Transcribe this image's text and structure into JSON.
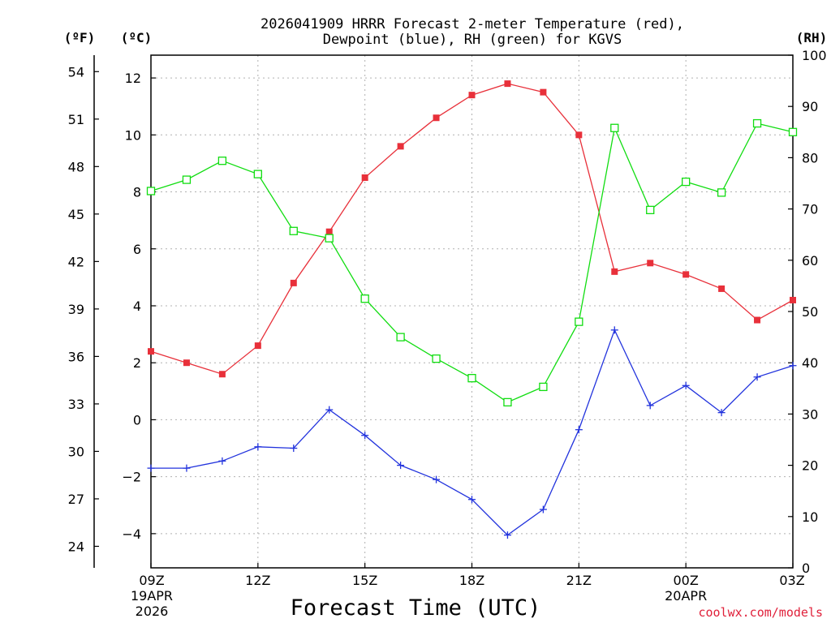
{
  "chart_data": {
    "type": "line",
    "title_line1": "2026041909 HRRR Forecast 2-meter Temperature (red),",
    "title_line2": "Dewpoint (blue), RH (green) for KGVS",
    "xlabel": "Forecast Time (UTC)",
    "credit": "coolwx.com/models",
    "units": {
      "fahrenheit": "(ºF)",
      "celsius": "(ºC)",
      "rh": "(RH)"
    },
    "x_hours": [
      0,
      1,
      2,
      3,
      4,
      5,
      6,
      7,
      8,
      9,
      10,
      11,
      12,
      13,
      14,
      15,
      16,
      17,
      18
    ],
    "x_ticks": [
      {
        "hour": 0,
        "label": "09Z",
        "date1": "19APR",
        "date2": "2026"
      },
      {
        "hour": 3,
        "label": "12Z"
      },
      {
        "hour": 6,
        "label": "15Z"
      },
      {
        "hour": 9,
        "label": "18Z"
      },
      {
        "hour": 12,
        "label": "21Z"
      },
      {
        "hour": 15,
        "label": "00Z",
        "date1": "20APR"
      },
      {
        "hour": 18,
        "label": "03Z"
      }
    ],
    "xlim": [
      0,
      18
    ],
    "ylim_celsius": [
      -5.2,
      12.8
    ],
    "ylim_rh": [
      0,
      100
    ],
    "celsius_ticks": [
      "12",
      "10",
      "8",
      "6",
      "4",
      "2",
      "0",
      "−2",
      "−4"
    ],
    "celsius_tick_values": [
      12,
      10,
      8,
      6,
      4,
      2,
      0,
      -2,
      -4
    ],
    "fahrenheit_ticks": [
      "54",
      "51",
      "48",
      "45",
      "42",
      "39",
      "36",
      "33",
      "30",
      "27",
      "24"
    ],
    "fahrenheit_tick_values": [
      54,
      51,
      48,
      45,
      42,
      39,
      36,
      33,
      30,
      27,
      24
    ],
    "rh_ticks": [
      "100",
      "90",
      "80",
      "70",
      "60",
      "50",
      "40",
      "30",
      "20",
      "10",
      "0"
    ],
    "rh_tick_values": [
      100,
      90,
      80,
      70,
      60,
      50,
      40,
      30,
      20,
      10,
      0
    ],
    "series": [
      {
        "name": "Temperature",
        "axis": "celsius",
        "color": "#e8303a",
        "marker": "filled-square",
        "values": [
          2.4,
          2.0,
          1.6,
          2.6,
          4.8,
          6.6,
          8.5,
          9.6,
          10.6,
          11.4,
          11.8,
          11.5,
          10.0,
          5.2,
          5.5,
          5.1,
          4.6,
          3.5,
          4.2
        ]
      },
      {
        "name": "Dewpoint",
        "axis": "celsius",
        "color": "#2233dd",
        "marker": "plus",
        "values": [
          -1.7,
          -1.7,
          -1.45,
          -0.95,
          -1.0,
          0.35,
          -0.55,
          -1.6,
          -2.1,
          -2.8,
          -4.05,
          -3.15,
          -0.35,
          3.15,
          0.5,
          1.2,
          0.25,
          1.5,
          1.9
        ]
      },
      {
        "name": "RH",
        "axis": "rh",
        "color": "#11dd11",
        "marker": "open-square",
        "values": [
          73.5,
          75.7,
          79.4,
          76.8,
          65.7,
          64.3,
          52.5,
          45.0,
          40.8,
          37.0,
          32.3,
          35.3,
          48.0,
          85.8,
          69.8,
          75.3,
          73.2,
          86.7,
          85.0
        ]
      }
    ]
  }
}
